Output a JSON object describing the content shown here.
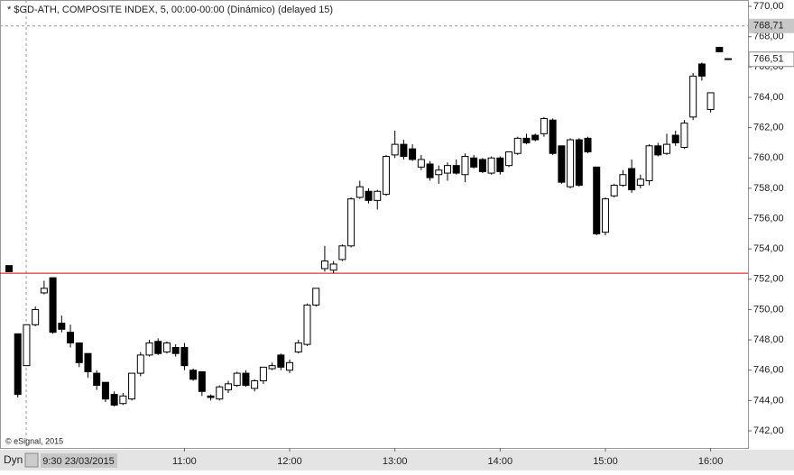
{
  "chart_data": {
    "type": "candlestick",
    "title": "* $GD-ATH, COMPOSITE INDEX, 5, 00:00-00:00 (Dinámico) (delayed 15)",
    "copyright": "© eSignal, 2015",
    "mode_label": "Dyn",
    "crosshair_time": "9:30 23/03/2015",
    "crosshair_price": {
      "value": 768.71,
      "label": "768,71"
    },
    "last_price": {
      "value": 766.51,
      "label": "766,51"
    },
    "reference_line": 752.4,
    "reference_color": "#e00000",
    "up_color": "#ffffff",
    "down_color": "#000000",
    "categories": [
      null,
      null,
      null,
      null,
      null,
      null,
      null,
      null,
      null,
      null,
      null,
      null,
      null,
      null,
      null,
      null,
      null,
      null,
      null,
      null,
      "11:00",
      null,
      null,
      null,
      null,
      null,
      null,
      null,
      null,
      null,
      null,
      null,
      "12:00",
      null,
      null,
      null,
      null,
      null,
      null,
      null,
      null,
      null,
      null,
      null,
      "13:00",
      null,
      null,
      null,
      null,
      null,
      null,
      null,
      null,
      null,
      null,
      null,
      "14:00",
      null,
      null,
      null,
      null,
      null,
      null,
      null,
      null,
      null,
      null,
      null,
      "15:00",
      null,
      null,
      null,
      null,
      null,
      null,
      null,
      null,
      null,
      null,
      null,
      "16:00",
      null,
      null
    ],
    "open": [
      752.9,
      748.4,
      746.3,
      749.0,
      751.1,
      752.1,
      749.1,
      748.5,
      747.8,
      747.1,
      745.8,
      745.2,
      744.4,
      743.8,
      744.1,
      745.8,
      747.0,
      747.9,
      747.2,
      747.5,
      747.5,
      746.0,
      745.9,
      744.3,
      744.1,
      744.7,
      745.0,
      745.8,
      744.8,
      745.3,
      746.1,
      747.0,
      746.0,
      747.2,
      747.7,
      750.3,
      752.7,
      752.6,
      753.3,
      754.2,
      757.4,
      757.8,
      757.2,
      757.6,
      760.2,
      760.9,
      760.6,
      759.4,
      759.6,
      758.9,
      759.0,
      759.5,
      758.9,
      760.0,
      759.9,
      759.0,
      760.0,
      759.5,
      760.3,
      761.3,
      761.5,
      761.6,
      762.5,
      760.8,
      758.1,
      761.2,
      761.3,
      759.4,
      755.1,
      757.5,
      758.2,
      759.3,
      758.2,
      758.5,
      760.8,
      760.3,
      761.5,
      760.7,
      762.7,
      766.2,
      763.2,
      767.3,
      766.55
    ],
    "high": [
      752.9,
      748.4,
      749.0,
      750.2,
      751.9,
      752.1,
      749.6,
      749.0,
      747.8,
      747.1,
      746.0,
      745.2,
      744.6,
      744.5,
      745.8,
      747.2,
      748.0,
      748.1,
      747.9,
      747.7,
      747.8,
      746.1,
      745.9,
      744.4,
      745.0,
      745.3,
      745.9,
      746.0,
      745.4,
      746.2,
      746.5,
      747.1,
      746.7,
      748.0,
      750.4,
      751.4,
      754.2,
      753.2,
      754.3,
      757.4,
      758.5,
      758.0,
      757.9,
      760.2,
      761.8,
      761.2,
      760.9,
      760.2,
      759.8,
      759.5,
      759.7,
      759.9,
      760.3,
      760.2,
      760.0,
      760.1,
      760.1,
      760.4,
      761.4,
      761.6,
      761.6,
      762.7,
      762.6,
      760.8,
      761.3,
      761.3,
      761.4,
      759.4,
      757.4,
      758.3,
      759.2,
      759.9,
      758.9,
      760.9,
      761.0,
      761.6,
      761.8,
      762.5,
      765.6,
      766.3,
      764.3,
      767.3,
      766.55
    ],
    "low": [
      752.5,
      744.2,
      746.3,
      748.9,
      751.0,
      748.4,
      748.5,
      747.5,
      746.2,
      745.5,
      744.7,
      743.9,
      743.6,
      743.7,
      744.0,
      745.6,
      746.9,
      747.0,
      747.1,
      746.9,
      746.0,
      745.3,
      744.3,
      744.0,
      744.0,
      744.5,
      744.9,
      744.9,
      744.6,
      745.1,
      746.0,
      746.0,
      745.8,
      747.1,
      747.6,
      750.2,
      752.5,
      752.4,
      753.2,
      754.1,
      757.3,
      757.0,
      756.6,
      757.5,
      760.0,
      759.9,
      759.8,
      759.2,
      758.5,
      758.3,
      758.5,
      758.9,
      758.4,
      759.3,
      759.0,
      758.9,
      758.9,
      759.4,
      760.2,
      760.9,
      761.1,
      761.4,
      760.2,
      758.3,
      758.0,
      758.1,
      760.3,
      754.9,
      754.9,
      757.4,
      758.1,
      757.7,
      758.0,
      758.2,
      760.1,
      760.2,
      760.8,
      760.6,
      762.5,
      765.1,
      763.0,
      767.0,
      766.51
    ],
    "close": [
      752.5,
      744.4,
      749.0,
      750.0,
      751.4,
      748.5,
      748.7,
      747.8,
      746.5,
      745.9,
      745.0,
      744.1,
      743.7,
      744.3,
      745.8,
      747.0,
      747.8,
      747.1,
      747.8,
      747.1,
      746.3,
      745.4,
      744.6,
      744.2,
      744.9,
      745.1,
      745.8,
      745.0,
      745.3,
      746.2,
      746.3,
      746.2,
      746.5,
      747.8,
      750.3,
      751.4,
      753.2,
      753.0,
      754.2,
      757.3,
      758.1,
      757.2,
      757.8,
      760.1,
      760.9,
      760.1,
      759.9,
      759.9,
      758.7,
      759.2,
      759.5,
      759.0,
      760.1,
      759.4,
      759.1,
      760.0,
      759.1,
      760.4,
      761.3,
      761.0,
      761.2,
      762.6,
      760.3,
      758.4,
      761.2,
      758.2,
      760.4,
      755.0,
      757.3,
      758.2,
      758.9,
      757.9,
      758.6,
      760.8,
      760.2,
      760.9,
      761.0,
      762.3,
      765.4,
      765.4,
      764.3,
      767.0,
      766.51
    ],
    "ylim": [
      740.87,
      770.42
    ],
    "yticks": [
      {
        "value": 742,
        "label": "742,00"
      },
      {
        "value": 744,
        "label": "744,00"
      },
      {
        "value": 746,
        "label": "746,00"
      },
      {
        "value": 748,
        "label": "748,00"
      },
      {
        "value": 750,
        "label": "750,00"
      },
      {
        "value": 752,
        "label": "752,00"
      },
      {
        "value": 754,
        "label": "754,00"
      },
      {
        "value": 756,
        "label": "756,00"
      },
      {
        "value": 758,
        "label": "758,00"
      },
      {
        "value": 760,
        "label": "760,00"
      },
      {
        "value": 762,
        "label": "762,00"
      },
      {
        "value": 764,
        "label": "764,00"
      },
      {
        "value": 766,
        "label": "766,00"
      },
      {
        "value": 768,
        "label": "768,00"
      },
      {
        "value": 770,
        "label": "770,00"
      }
    ]
  }
}
